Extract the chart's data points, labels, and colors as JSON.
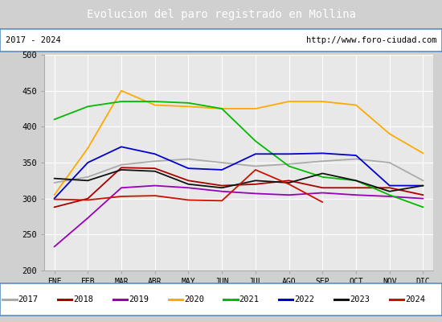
{
  "title": "Evolucion del paro registrado en Mollina",
  "title_bg": "#5b8ec5",
  "subtitle_left": "2017 - 2024",
  "subtitle_right": "http://www.foro-ciudad.com",
  "months": [
    "ENE",
    "FEB",
    "MAR",
    "ABR",
    "MAY",
    "JUN",
    "JUL",
    "AGO",
    "SEP",
    "OCT",
    "NOV",
    "DIC"
  ],
  "ylim": [
    200,
    500
  ],
  "yticks": [
    200,
    250,
    300,
    350,
    400,
    450,
    500
  ],
  "series": {
    "2017": {
      "color": "#aaaaaa",
      "values": [
        322,
        330,
        347,
        352,
        355,
        350,
        345,
        348,
        352,
        355,
        350,
        325
      ]
    },
    "2018": {
      "color": "#aa0000",
      "values": [
        288,
        300,
        343,
        342,
        325,
        318,
        320,
        325,
        315,
        315,
        315,
        305
      ]
    },
    "2019": {
      "color": "#9900bb",
      "values": [
        233,
        273,
        315,
        318,
        315,
        310,
        307,
        305,
        308,
        305,
        303,
        300
      ]
    },
    "2020": {
      "color": "#ffaa00",
      "values": [
        305,
        370,
        450,
        430,
        428,
        425,
        425,
        435,
        435,
        430,
        390,
        363
      ]
    },
    "2021": {
      "color": "#00bb00",
      "values": [
        410,
        428,
        435,
        435,
        433,
        425,
        380,
        345,
        330,
        325,
        305,
        288
      ]
    },
    "2022": {
      "color": "#0000cc",
      "values": [
        300,
        350,
        372,
        362,
        342,
        340,
        362,
        362,
        363,
        360,
        318,
        318
      ]
    },
    "2023": {
      "color": "#111111",
      "values": [
        328,
        325,
        340,
        338,
        320,
        315,
        325,
        322,
        335,
        325,
        310,
        318
      ]
    },
    "2024": {
      "color": "#cc1100",
      "values": [
        299,
        298,
        303,
        304,
        298,
        297,
        340,
        320,
        295,
        null,
        null,
        null
      ]
    }
  },
  "legend_order": [
    "2017",
    "2018",
    "2019",
    "2020",
    "2021",
    "2022",
    "2023",
    "2024"
  ],
  "fig_width": 5.5,
  "fig_height": 4.0,
  "dpi": 100
}
